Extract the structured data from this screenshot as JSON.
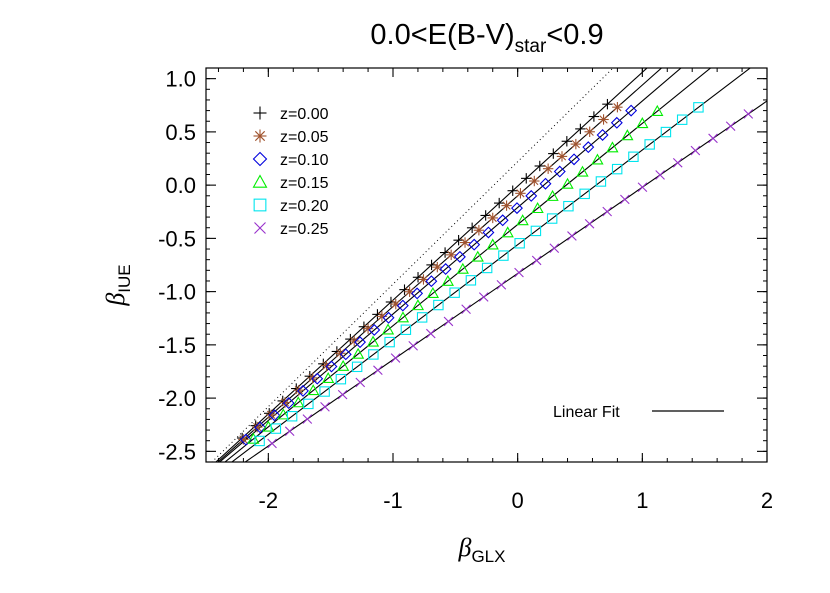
{
  "chart_data": {
    "type": "scatter",
    "title": {
      "prefix": "0.0<E(B-V)",
      "sub": "star",
      "suffix": "<0.9"
    },
    "xlabel": {
      "symbol": "β",
      "sub": "GLX"
    },
    "ylabel": {
      "symbol": "β",
      "sub": "IUE"
    },
    "xlim": [
      -2.5,
      2.0
    ],
    "ylim": [
      -2.6,
      1.1
    ],
    "xticks": [
      -2,
      -1,
      0,
      1,
      2
    ],
    "xtick_labels": [
      "-2",
      "-1",
      "0",
      "1",
      "2"
    ],
    "yticks": [
      -2.5,
      -2.0,
      -1.5,
      -1.0,
      -0.5,
      0.0,
      0.5,
      1.0
    ],
    "ytick_labels": [
      "-2.5",
      "-2.0",
      "-1.5",
      "-1.0",
      "-0.5",
      "0.0",
      "0.5",
      "1.0"
    ],
    "legend_position": "top-left",
    "series": [
      {
        "name": "z=0.00",
        "marker": "plus",
        "color": "#000000",
        "x0": -2.21,
        "x1": 0.72,
        "slope": 1.07,
        "intercept": -0.01
      },
      {
        "name": "z=0.05",
        "marker": "asterisk",
        "color": "#a0522d",
        "x0": -2.2,
        "x1": 0.8,
        "slope": 1.04,
        "intercept": -0.1
      },
      {
        "name": "z=0.10",
        "marker": "diamond",
        "color": "#0000dd",
        "x0": -2.18,
        "x1": 0.91,
        "slope": 1.0,
        "intercept": -0.21
      },
      {
        "name": "z=0.15",
        "marker": "triangle",
        "color": "#00ee00",
        "x0": -2.12,
        "x1": 1.12,
        "slope": 0.95,
        "intercept": -0.37
      },
      {
        "name": "z=0.20",
        "marker": "square",
        "color": "#00e5ee",
        "x0": -2.07,
        "x1": 1.45,
        "slope": 0.89,
        "intercept": -0.56
      },
      {
        "name": "z=0.25",
        "marker": "cross",
        "color": "#9932cc",
        "x0": -1.97,
        "x1": 1.85,
        "slope": 0.81,
        "intercept": -0.83
      }
    ],
    "fit_lines": [
      {
        "slope": 1.07,
        "intercept": -0.01
      },
      {
        "slope": 1.04,
        "intercept": -0.1
      },
      {
        "slope": 1.0,
        "intercept": -0.21
      },
      {
        "slope": 0.95,
        "intercept": -0.37
      },
      {
        "slope": 0.89,
        "intercept": -0.56
      },
      {
        "slope": 0.81,
        "intercept": -0.83
      }
    ],
    "reference_line": {
      "slope": 1.15,
      "intercept": 0.22,
      "style": "dotted"
    },
    "fit_legend_label": "Linear Fit",
    "points_per_series": 28
  }
}
